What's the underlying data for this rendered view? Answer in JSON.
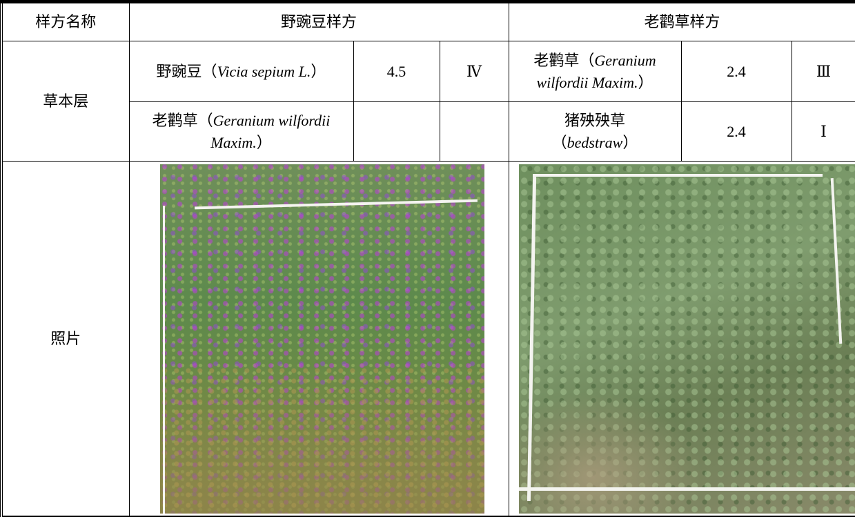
{
  "table": {
    "header": [
      "样方名称",
      "野豌豆样方",
      "老鹳草样方"
    ],
    "row_label": "草本层",
    "rows": [
      [
        {
          "name": "野豌豆（",
          "latin": "Vicia sepium L.",
          "end": "）"
        },
        4.5,
        "Ⅳ",
        {
          "name": "老鹳草（",
          "latin": "Geranium wilfordii Maxim.",
          "end": "）"
        },
        2.4,
        "Ⅲ"
      ],
      [
        {
          "name": "老鹳草（",
          "latin": "Geranium wilfordii Maxim.",
          "end": "）"
        },
        {
          "name": "猪殃殃草（",
          "latin": "bedstraw",
          "end": "）"
        },
        2.4,
        "Ⅰ"
      ]
    ],
    "photo_label": "照片"
  }
}
